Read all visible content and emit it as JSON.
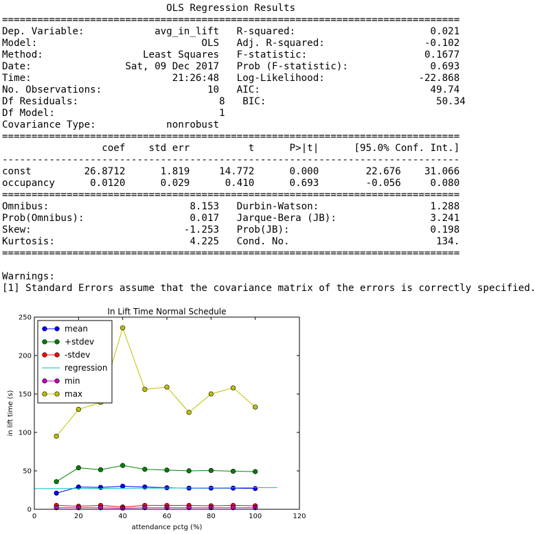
{
  "summary": {
    "lines": [
      "                            OLS Regression Results                            ",
      "==============================================================================",
      "Dep. Variable:            avg_in_lift   R-squared:                       0.021",
      "Model:                            OLS   Adj. R-squared:                 -0.102",
      "Method:                 Least Squares   F-statistic:                    0.1677",
      "Date:                Sat, 09 Dec 2017   Prob (F-statistic):              0.693",
      "Time:                        21:26:48   Log-Likelihood:                -22.868",
      "No. Observations:                  10   AIC:                             49.74",
      "Df Residuals:                        8   BIC:                             50.34",
      "Df Model:                            1                                         ",
      "Covariance Type:            nonrobust                                         ",
      "==============================================================================",
      "                 coef    std err          t      P>|t|      [95.0% Conf. Int.]",
      "------------------------------------------------------------------------------",
      "const         26.8712      1.819     14.772      0.000        22.676    31.066",
      "occupancy      0.0120      0.029      0.410      0.693        -0.056     0.080",
      "==============================================================================",
      "Omnibus:                        8.153   Durbin-Watson:                   1.288",
      "Prob(Omnibus):                  0.017   Jarque-Bera (JB):                3.241",
      "Skew:                          -1.253   Prob(JB):                        0.198",
      "Kurtosis:                       4.225   Cond. No.                         134.",
      "==============================================================================",
      "",
      "Warnings:",
      "[1] Standard Errors assume that the covariance matrix of the errors is correctly specified."
    ]
  },
  "chart_data": {
    "type": "line",
    "title": "In Lift Time Normal Schedule",
    "xlabel": "attendance pctg (%)",
    "ylabel": "in lift time (s)",
    "xlim": [
      0,
      120
    ],
    "ylim": [
      0,
      250
    ],
    "xticks": [
      0,
      20,
      40,
      60,
      80,
      100,
      120
    ],
    "yticks": [
      0,
      50,
      100,
      150,
      200,
      250
    ],
    "grid": false,
    "legend_position": "top-left",
    "x": [
      10,
      20,
      30,
      40,
      50,
      60,
      70,
      80,
      90,
      100
    ],
    "series": [
      {
        "name": "mean",
        "color": "#0000ff",
        "marker": "circle",
        "values": [
          21,
          29,
          28.5,
          30,
          29,
          28,
          27.5,
          27.5,
          27.5,
          27
        ]
      },
      {
        "name": "+stdev",
        "color": "#008000",
        "marker": "circle",
        "values": [
          36,
          54,
          51.5,
          57,
          52,
          51,
          50,
          50.5,
          49.5,
          49
        ]
      },
      {
        "name": "-stdev",
        "color": "#ff0000",
        "marker": "circle",
        "values": [
          5,
          4,
          5,
          3,
          5,
          5,
          5,
          4.5,
          5,
          4.5
        ]
      },
      {
        "name": "regression",
        "color": "#00bfbf",
        "marker": "none",
        "x": [
          0,
          110
        ],
        "values": [
          26.8712,
          28.1912
        ]
      },
      {
        "name": "min",
        "color": "#bf00bf",
        "marker": "circle",
        "values": [
          2,
          2,
          2,
          1.5,
          2,
          2,
          2,
          2,
          2,
          2
        ]
      },
      {
        "name": "max",
        "color": "#bfbf00",
        "marker": "circle",
        "values": [
          95,
          130,
          139,
          236,
          156,
          159,
          126,
          150,
          158,
          133
        ]
      }
    ]
  }
}
